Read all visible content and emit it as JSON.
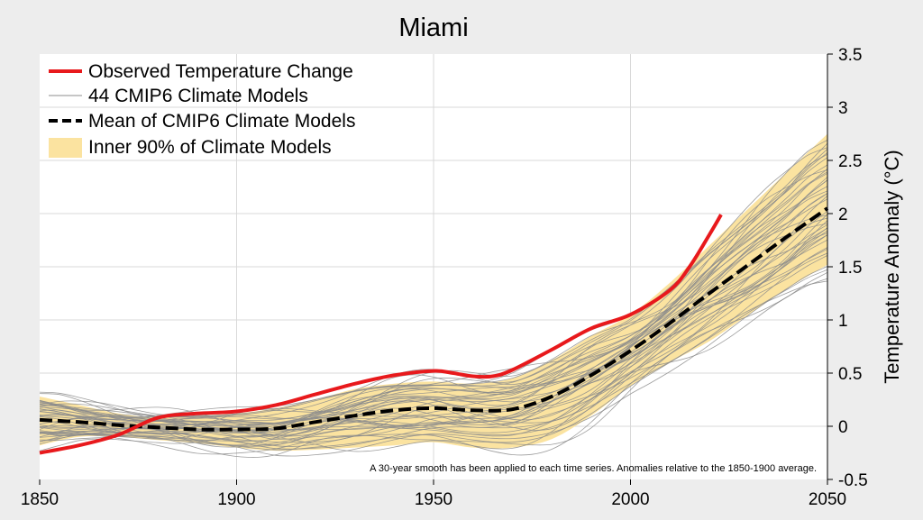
{
  "chart_data": {
    "type": "line",
    "title": "Miami",
    "xlabel": "",
    "ylabel": "Temperature Anomaly (°C)",
    "xlim": [
      1850,
      2050
    ],
    "ylim": [
      -0.5,
      3.5
    ],
    "x_ticks": [
      1850,
      1900,
      1950,
      2000,
      2050
    ],
    "y_ticks": [
      -0.5,
      0,
      0.5,
      1,
      1.5,
      2,
      2.5,
      3,
      3.5
    ],
    "y_tick_labels": [
      "-0.5",
      "0",
      "0.5",
      "1",
      "1.5",
      "2",
      "2.5",
      "3",
      "3.5"
    ],
    "grid": true,
    "legend_position": "top-left",
    "note": "A 30-year smooth has been applied to each time series.  Anomalies relative to the 1850-1900 average.",
    "series": [
      {
        "name": "Observed Temperature Change",
        "color": "#e8191c",
        "style": "solid",
        "x": [
          1850,
          1860,
          1870,
          1880,
          1890,
          1900,
          1910,
          1920,
          1930,
          1940,
          1950,
          1955,
          1960,
          1965,
          1970,
          1980,
          1990,
          2000,
          2010,
          2015,
          2020,
          2023
        ],
        "y": [
          -0.25,
          -0.18,
          -0.08,
          0.08,
          0.12,
          0.14,
          0.2,
          0.3,
          0.4,
          0.48,
          0.52,
          0.5,
          0.47,
          0.47,
          0.53,
          0.72,
          0.92,
          1.05,
          1.28,
          1.5,
          1.8,
          1.99
        ]
      },
      {
        "name": "Mean of CMIP6 Climate Models",
        "color": "#000000",
        "style": "dashed",
        "x": [
          1850,
          1860,
          1870,
          1880,
          1890,
          1900,
          1910,
          1920,
          1930,
          1940,
          1950,
          1960,
          1970,
          1980,
          1990,
          2000,
          2010,
          2020,
          2030,
          2040,
          2050
        ],
        "y": [
          0.06,
          0.04,
          0.01,
          -0.01,
          -0.03,
          -0.03,
          -0.02,
          0.04,
          0.1,
          0.15,
          0.17,
          0.15,
          0.16,
          0.28,
          0.48,
          0.71,
          0.97,
          1.25,
          1.52,
          1.79,
          2.05
        ]
      }
    ],
    "band": {
      "name": "Inner 90% of Climate Models",
      "color": "#fbe3a0",
      "x": [
        1850,
        1860,
        1870,
        1880,
        1890,
        1900,
        1910,
        1920,
        1930,
        1940,
        1950,
        1960,
        1970,
        1980,
        1990,
        2000,
        2010,
        2020,
        2030,
        2040,
        2050
      ],
      "lower": [
        -0.18,
        -0.1,
        -0.1,
        -0.13,
        -0.16,
        -0.2,
        -0.23,
        -0.22,
        -0.2,
        -0.18,
        -0.15,
        -0.2,
        -0.2,
        -0.12,
        0.1,
        0.38,
        0.6,
        0.8,
        1.05,
        1.3,
        1.52
      ],
      "upper": [
        0.28,
        0.2,
        0.12,
        0.08,
        0.1,
        0.12,
        0.17,
        0.25,
        0.35,
        0.4,
        0.42,
        0.4,
        0.45,
        0.62,
        0.85,
        1.05,
        1.35,
        1.7,
        2.05,
        2.4,
        2.75
      ]
    },
    "model_ensemble": {
      "name": "44 CMIP6 Climate Models",
      "color": "#8c8c8c",
      "count": 44
    }
  }
}
